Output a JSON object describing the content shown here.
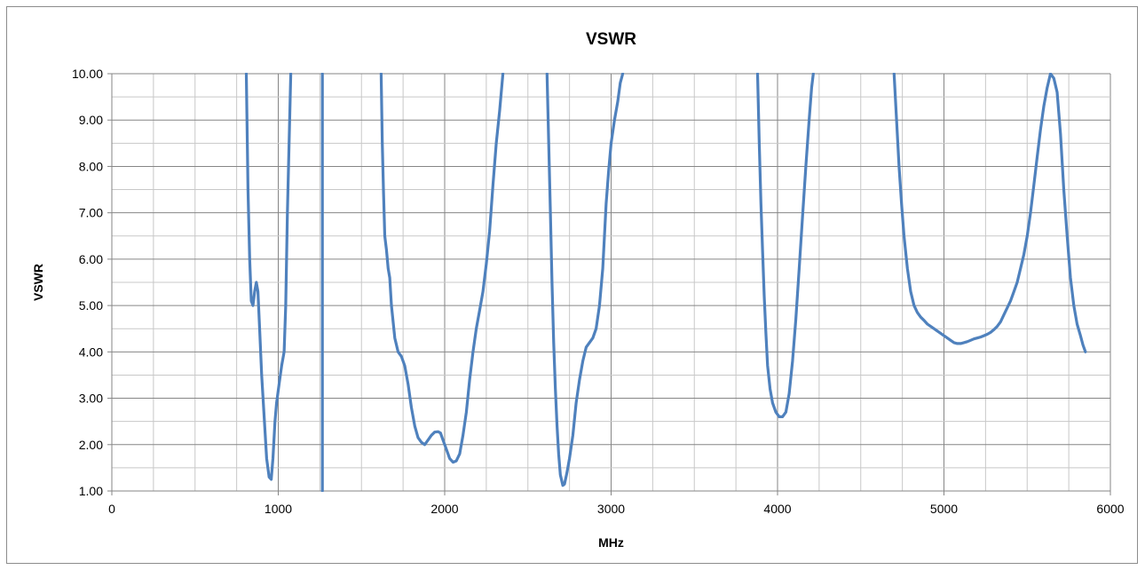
{
  "chart_data": {
    "type": "line",
    "title": "VSWR",
    "xlabel": "MHz",
    "ylabel": "VSWR",
    "xlim": [
      0,
      6000
    ],
    "ylim": [
      1,
      10
    ],
    "x_ticks": [
      0,
      1000,
      2000,
      3000,
      4000,
      5000,
      6000
    ],
    "x_tick_labels": [
      "0",
      "1000",
      "2000",
      "3000",
      "4000",
      "5000",
      "6000"
    ],
    "y_ticks": [
      1,
      2,
      3,
      4,
      5,
      6,
      7,
      8,
      9,
      10
    ],
    "y_tick_labels": [
      "1.00",
      "2.00",
      "3.00",
      "4.00",
      "5.00",
      "6.00",
      "7.00",
      "8.00",
      "9.00",
      "10.00"
    ],
    "grid": true,
    "minor_grid": true,
    "legend": "none",
    "line_color": "#4F81BD",
    "series": [
      {
        "segments": [
          [
            [
              808,
              10
            ],
            [
              818,
              7.5
            ],
            [
              828,
              6
            ],
            [
              838,
              5.1
            ],
            [
              848,
              5.0
            ],
            [
              858,
              5.3
            ],
            [
              868,
              5.5
            ],
            [
              878,
              5.3
            ],
            [
              888,
              4.5
            ],
            [
              900,
              3.5
            ],
            [
              915,
              2.6
            ],
            [
              930,
              1.7
            ],
            [
              945,
              1.3
            ],
            [
              958,
              1.25
            ],
            [
              968,
              1.7
            ],
            [
              980,
              2.5
            ],
            [
              990,
              2.9
            ],
            [
              1005,
              3.3
            ],
            [
              1020,
              3.7
            ],
            [
              1035,
              4.0
            ],
            [
              1045,
              5.0
            ],
            [
              1055,
              7.0
            ],
            [
              1065,
              8.5
            ],
            [
              1075,
              10
            ]
          ],
          [
            [
              1265,
              1
            ],
            [
              1265,
              10
            ]
          ],
          [
            [
              1618,
              10
            ],
            [
              1625,
              8.5
            ],
            [
              1632,
              7.5
            ],
            [
              1640,
              6.5
            ],
            [
              1650,
              6.2
            ],
            [
              1660,
              5.8
            ],
            [
              1670,
              5.6
            ],
            [
              1680,
              5.0
            ],
            [
              1700,
              4.3
            ],
            [
              1720,
              4.0
            ],
            [
              1740,
              3.9
            ],
            [
              1760,
              3.7
            ],
            [
              1780,
              3.3
            ],
            [
              1800,
              2.8
            ],
            [
              1820,
              2.4
            ],
            [
              1840,
              2.15
            ],
            [
              1860,
              2.05
            ],
            [
              1880,
              2.0
            ],
            [
              1900,
              2.1
            ],
            [
              1920,
              2.2
            ],
            [
              1940,
              2.27
            ],
            [
              1960,
              2.28
            ],
            [
              1975,
              2.25
            ],
            [
              1990,
              2.1
            ],
            [
              2010,
              1.9
            ],
            [
              2030,
              1.7
            ],
            [
              2050,
              1.62
            ],
            [
              2070,
              1.65
            ],
            [
              2090,
              1.8
            ],
            [
              2110,
              2.2
            ],
            [
              2130,
              2.7
            ],
            [
              2150,
              3.4
            ],
            [
              2170,
              4.0
            ],
            [
              2190,
              4.5
            ],
            [
              2210,
              4.9
            ],
            [
              2230,
              5.3
            ],
            [
              2250,
              5.9
            ],
            [
              2270,
              6.6
            ],
            [
              2290,
              7.6
            ],
            [
              2310,
              8.5
            ],
            [
              2330,
              9.2
            ],
            [
              2350,
              10
            ]
          ],
          [
            [
              2615,
              10
            ],
            [
              2625,
              8.5
            ],
            [
              2635,
              7.0
            ],
            [
              2645,
              5.5
            ],
            [
              2655,
              4.2
            ],
            [
              2665,
              3.2
            ],
            [
              2675,
              2.4
            ],
            [
              2685,
              1.8
            ],
            [
              2695,
              1.35
            ],
            [
              2710,
              1.12
            ],
            [
              2720,
              1.15
            ],
            [
              2735,
              1.4
            ],
            [
              2750,
              1.7
            ],
            [
              2770,
              2.2
            ],
            [
              2790,
              2.9
            ],
            [
              2810,
              3.4
            ],
            [
              2830,
              3.8
            ],
            [
              2850,
              4.1
            ],
            [
              2870,
              4.2
            ],
            [
              2890,
              4.3
            ],
            [
              2910,
              4.5
            ],
            [
              2930,
              5.0
            ],
            [
              2950,
              5.8
            ],
            [
              2960,
              6.5
            ],
            [
              2970,
              7.2
            ],
            [
              2985,
              7.9
            ],
            [
              3000,
              8.5
            ],
            [
              3020,
              9.0
            ],
            [
              3040,
              9.4
            ],
            [
              3055,
              9.8
            ],
            [
              3070,
              10
            ]
          ],
          [
            [
              3880,
              10
            ],
            [
              3890,
              8.5
            ],
            [
              3900,
              7.2
            ],
            [
              3910,
              6.2
            ],
            [
              3920,
              5.2
            ],
            [
              3930,
              4.4
            ],
            [
              3940,
              3.7
            ],
            [
              3955,
              3.2
            ],
            [
              3970,
              2.9
            ],
            [
              3990,
              2.7
            ],
            [
              4010,
              2.6
            ],
            [
              4030,
              2.6
            ],
            [
              4050,
              2.7
            ],
            [
              4070,
              3.1
            ],
            [
              4090,
              3.8
            ],
            [
              4110,
              4.7
            ],
            [
              4130,
              5.8
            ],
            [
              4150,
              6.9
            ],
            [
              4170,
              8.0
            ],
            [
              4190,
              9.0
            ],
            [
              4205,
              9.7
            ],
            [
              4215,
              10
            ]
          ],
          [
            [
              4700,
              10
            ],
            [
              4715,
              9.0
            ],
            [
              4730,
              8.0
            ],
            [
              4745,
              7.2
            ],
            [
              4760,
              6.5
            ],
            [
              4780,
              5.8
            ],
            [
              4800,
              5.3
            ],
            [
              4820,
              5.0
            ],
            [
              4840,
              4.85
            ],
            [
              4860,
              4.75
            ],
            [
              4880,
              4.68
            ],
            [
              4900,
              4.6
            ],
            [
              4920,
              4.55
            ],
            [
              4940,
              4.5
            ],
            [
              4960,
              4.45
            ],
            [
              4980,
              4.4
            ],
            [
              5000,
              4.35
            ],
            [
              5020,
              4.3
            ],
            [
              5040,
              4.25
            ],
            [
              5060,
              4.2
            ],
            [
              5080,
              4.18
            ],
            [
              5100,
              4.18
            ],
            [
              5120,
              4.2
            ],
            [
              5140,
              4.22
            ],
            [
              5160,
              4.25
            ],
            [
              5180,
              4.28
            ],
            [
              5200,
              4.3
            ],
            [
              5220,
              4.32
            ],
            [
              5240,
              4.35
            ],
            [
              5260,
              4.38
            ],
            [
              5280,
              4.42
            ],
            [
              5300,
              4.48
            ],
            [
              5320,
              4.55
            ],
            [
              5340,
              4.65
            ],
            [
              5360,
              4.8
            ],
            [
              5380,
              4.95
            ],
            [
              5400,
              5.1
            ],
            [
              5420,
              5.3
            ],
            [
              5440,
              5.5
            ],
            [
              5460,
              5.8
            ],
            [
              5480,
              6.1
            ],
            [
              5500,
              6.5
            ],
            [
              5520,
              7.0
            ],
            [
              5540,
              7.6
            ],
            [
              5560,
              8.2
            ],
            [
              5580,
              8.8
            ],
            [
              5600,
              9.3
            ],
            [
              5620,
              9.7
            ],
            [
              5640,
              10.0
            ],
            [
              5660,
              9.9
            ],
            [
              5680,
              9.6
            ],
            [
              5700,
              8.7
            ],
            [
              5720,
              7.5
            ],
            [
              5740,
              6.5
            ],
            [
              5760,
              5.6
            ],
            [
              5780,
              5.0
            ],
            [
              5800,
              4.6
            ],
            [
              5820,
              4.35
            ],
            [
              5835,
              4.15
            ],
            [
              5850,
              4.0
            ]
          ]
        ]
      }
    ]
  }
}
